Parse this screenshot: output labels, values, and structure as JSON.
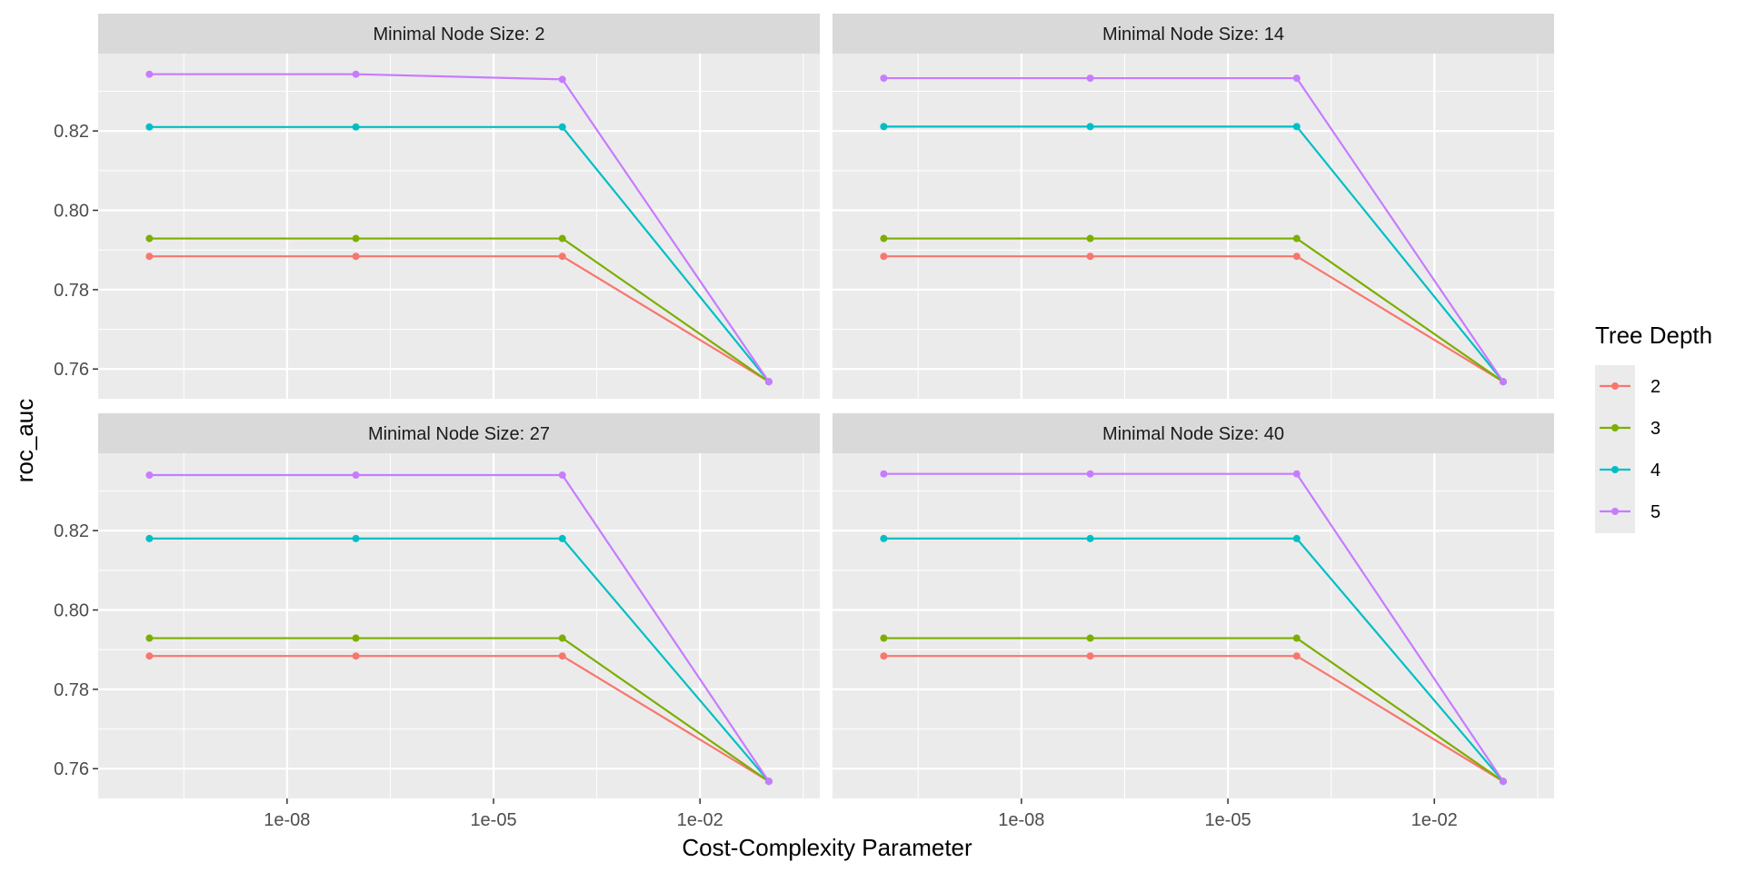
{
  "chart_data": {
    "type": "line",
    "xlabel": "Cost-Complexity Parameter",
    "ylabel": "roc_auc",
    "x_scale": "log10",
    "x": [
      1e-10,
      1e-07,
      0.0001,
      0.1
    ],
    "x_tick_values": [
      1e-08,
      1e-05,
      0.01
    ],
    "x_tick_labels": [
      "1e-08",
      "1e-05",
      "1e-02"
    ],
    "xlim": [
      1.8e-11,
      0.55
    ],
    "ylim": [
      0.7525,
      0.8395
    ],
    "y_ticks": [
      0.76,
      0.78,
      0.8,
      0.82
    ],
    "y_tick_labels": [
      "0.76",
      "0.78",
      "0.80",
      "0.82"
    ],
    "legend": {
      "title": "Tree Depth",
      "position": "right",
      "entries": [
        {
          "label": "2",
          "color": "#F8766D"
        },
        {
          "label": "3",
          "color": "#7CAE00"
        },
        {
          "label": "4",
          "color": "#00BFC4"
        },
        {
          "label": "5",
          "color": "#C77CFF"
        }
      ]
    },
    "panels": [
      {
        "title": "Minimal Node Size: 2",
        "series": [
          {
            "name": "2",
            "values": [
              0.7884,
              0.7884,
              0.7884,
              0.7568
            ]
          },
          {
            "name": "3",
            "values": [
              0.7929,
              0.7929,
              0.7929,
              0.7568
            ]
          },
          {
            "name": "4",
            "values": [
              0.821,
              0.821,
              0.821,
              0.7568
            ]
          },
          {
            "name": "5",
            "values": [
              0.8343,
              0.8343,
              0.833,
              0.7568
            ]
          }
        ]
      },
      {
        "title": "Minimal Node Size: 14",
        "series": [
          {
            "name": "2",
            "values": [
              0.7884,
              0.7884,
              0.7884,
              0.7568
            ]
          },
          {
            "name": "3",
            "values": [
              0.7929,
              0.7929,
              0.7929,
              0.7568
            ]
          },
          {
            "name": "4",
            "values": [
              0.8211,
              0.8211,
              0.8211,
              0.7568
            ]
          },
          {
            "name": "5",
            "values": [
              0.8333,
              0.8333,
              0.8333,
              0.7568
            ]
          }
        ]
      },
      {
        "title": "Minimal Node Size: 27",
        "series": [
          {
            "name": "2",
            "values": [
              0.7884,
              0.7884,
              0.7884,
              0.7568
            ]
          },
          {
            "name": "3",
            "values": [
              0.7929,
              0.7929,
              0.7929,
              0.7568
            ]
          },
          {
            "name": "4",
            "values": [
              0.818,
              0.818,
              0.818,
              0.7568
            ]
          },
          {
            "name": "5",
            "values": [
              0.834,
              0.834,
              0.834,
              0.7568
            ]
          }
        ]
      },
      {
        "title": "Minimal Node Size: 40",
        "series": [
          {
            "name": "2",
            "values": [
              0.7884,
              0.7884,
              0.7884,
              0.7568
            ]
          },
          {
            "name": "3",
            "values": [
              0.7929,
              0.7929,
              0.7929,
              0.7568
            ]
          },
          {
            "name": "4",
            "values": [
              0.818,
              0.818,
              0.818,
              0.7568
            ]
          },
          {
            "name": "5",
            "values": [
              0.8343,
              0.8343,
              0.8343,
              0.7568
            ]
          }
        ]
      }
    ]
  }
}
